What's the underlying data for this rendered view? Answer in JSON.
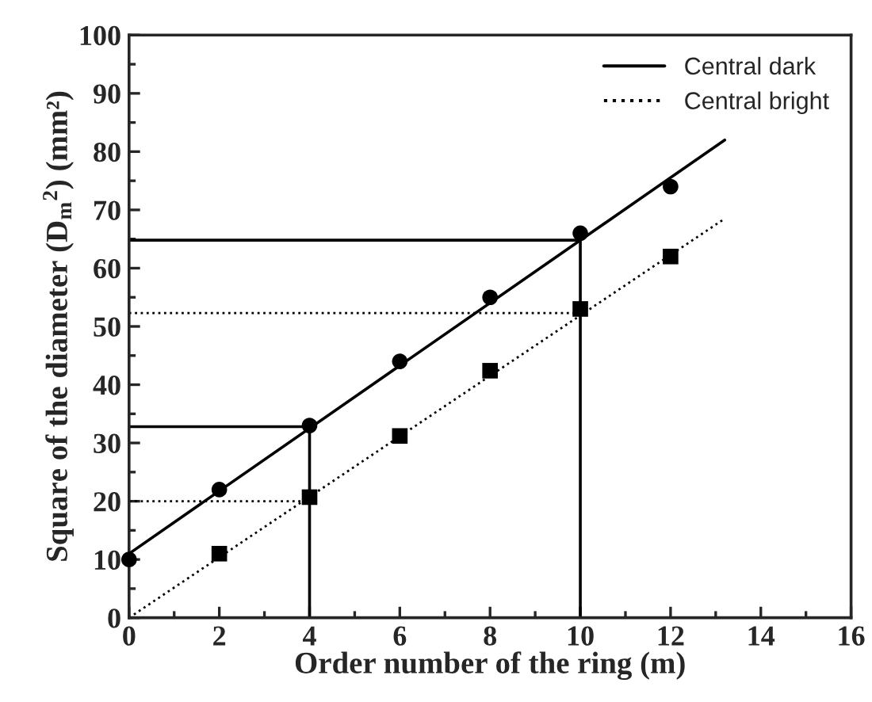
{
  "chart_data": {
    "type": "scatter",
    "xlabel": "Order number of the ring (m)",
    "ylabel": "Square of the diameter (D$_{m}$$^{2}$) (mm²)",
    "xlim": [
      0,
      16
    ],
    "xticks": [
      0,
      2,
      4,
      6,
      8,
      10,
      12,
      14,
      16
    ],
    "ylim": [
      0,
      100
    ],
    "yticks": [
      0,
      10,
      20,
      30,
      40,
      50,
      60,
      70,
      80,
      90,
      100
    ],
    "grid": false,
    "legend": "top right",
    "series": [
      {
        "marker": "circle",
        "color": "#000000",
        "x": [
          0,
          2,
          4,
          6,
          8,
          10,
          12
        ],
        "values": [
          10,
          22,
          33,
          44,
          55,
          66,
          74
        ]
      },
      {
        "marker": "square",
        "color": "#000000",
        "x": [
          2,
          4,
          6,
          8,
          10,
          12
        ],
        "values": [
          11,
          20.7,
          31.2,
          42.4,
          53,
          62
        ]
      },
      {
        "type": "line",
        "name": "Central dark",
        "line_style": "solid",
        "color": "#000000",
        "x": [
          0,
          13.2
        ],
        "values": [
          11,
          82
        ]
      },
      {
        "type": "line",
        "name": "Central bright",
        "line_style": "dotted",
        "color": "#000000",
        "x": [
          0,
          13.2
        ],
        "values": [
          0,
          68.5
        ]
      },
      {
        "type": "line",
        "line_style": "solid",
        "color": "#000000",
        "x": [
          0,
          10,
          10
        ],
        "values": [
          64.8,
          64.8,
          0
        ]
      },
      {
        "type": "line",
        "line_style": "solid",
        "color": "#000000",
        "x": [
          0,
          4,
          4
        ],
        "values": [
          32.8,
          32.8,
          0
        ]
      },
      {
        "type": "line",
        "line_style": "dotted",
        "color": "#000000",
        "x": [
          0,
          10
        ],
        "values": [
          52.3,
          52.3
        ]
      },
      {
        "type": "line",
        "line_style": "dotted",
        "color": "#000000",
        "x": [
          0,
          4
        ],
        "values": [
          20,
          20
        ]
      }
    ]
  }
}
